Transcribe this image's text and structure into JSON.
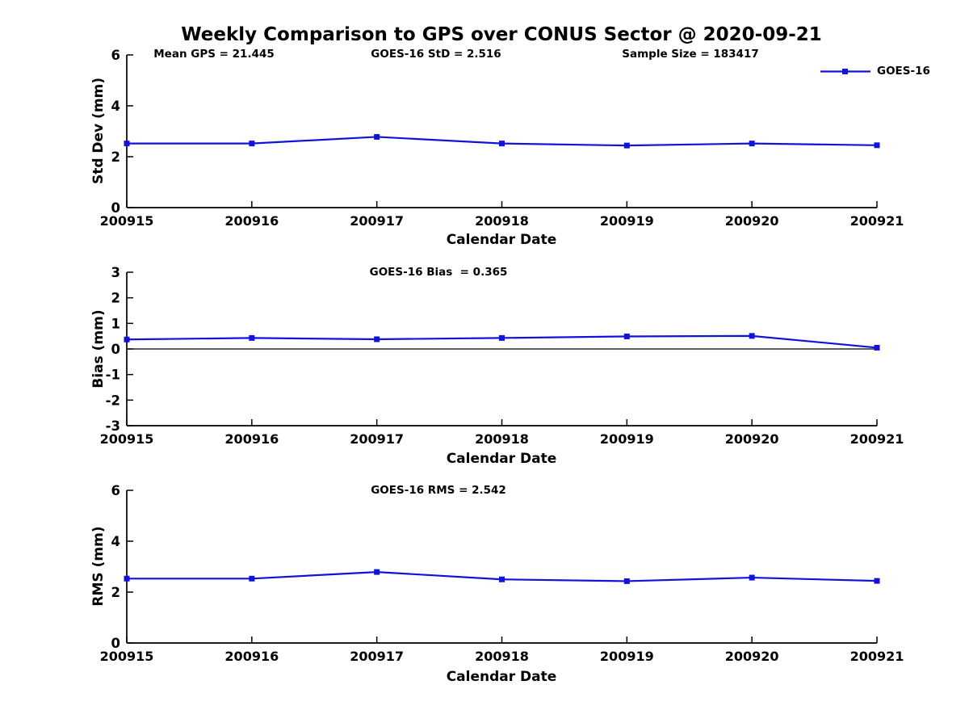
{
  "page_title": "Weekly Comparison to GPS over CONUS Sector @ 2020-09-21",
  "header_stats": [
    "Mean GPS = 21.445",
    "GOES-16 StD = 2.516",
    "Sample Size = 183417"
  ],
  "legend": {
    "label": "GOES-16",
    "color": "#1212dd",
    "marker": "filled-square"
  },
  "colors": {
    "series": "#1212dd",
    "axis": "#000000",
    "text": "#000000",
    "background": "#ffffff"
  },
  "chart_data": [
    {
      "type": "line",
      "subtitle": "",
      "categories": [
        "200915",
        "200916",
        "200917",
        "200918",
        "200919",
        "200920",
        "200921"
      ],
      "series": [
        {
          "name": "GOES-16",
          "values": [
            2.52,
            2.52,
            2.78,
            2.52,
            2.44,
            2.52,
            2.45
          ]
        }
      ],
      "xlabel": "Calendar Date",
      "ylabel": "Std Dev (mm)",
      "ylim": [
        0,
        6
      ],
      "yticks": [
        0,
        2,
        4,
        6
      ],
      "zero_line": false,
      "grid": false,
      "legend_position": "top-right"
    },
    {
      "type": "line",
      "subtitle": "GOES-16 Bias  = 0.365",
      "categories": [
        "200915",
        "200916",
        "200917",
        "200918",
        "200919",
        "200920",
        "200921"
      ],
      "series": [
        {
          "name": "GOES-16",
          "values": [
            0.37,
            0.43,
            0.38,
            0.43,
            0.49,
            0.51,
            0.05
          ]
        }
      ],
      "xlabel": "Calendar Date",
      "ylabel": "Bias (mm)",
      "ylim": [
        -3,
        3
      ],
      "yticks": [
        -3,
        -2,
        -1,
        0,
        1,
        2,
        3
      ],
      "zero_line": true,
      "grid": false,
      "legend_position": "none"
    },
    {
      "type": "line",
      "subtitle": "GOES-16 RMS = 2.542",
      "categories": [
        "200915",
        "200916",
        "200917",
        "200918",
        "200919",
        "200920",
        "200921"
      ],
      "series": [
        {
          "name": "GOES-16",
          "values": [
            2.53,
            2.53,
            2.79,
            2.5,
            2.43,
            2.57,
            2.44
          ]
        }
      ],
      "xlabel": "Calendar Date",
      "ylabel": "RMS (mm)",
      "ylim": [
        0,
        6
      ],
      "yticks": [
        0,
        2,
        4,
        6
      ],
      "zero_line": false,
      "grid": false,
      "legend_position": "none"
    }
  ]
}
